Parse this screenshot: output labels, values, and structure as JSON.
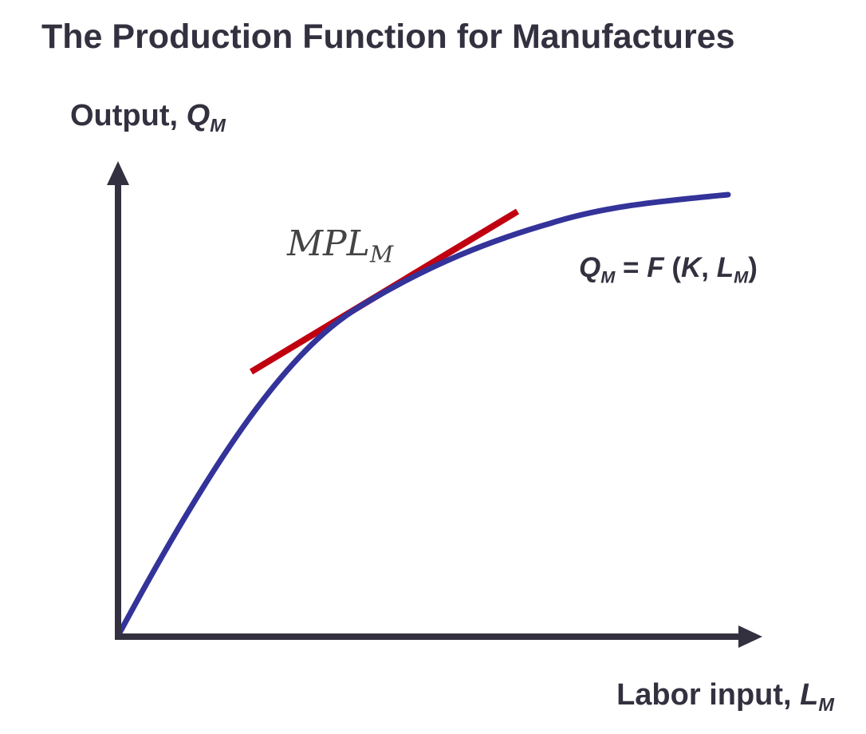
{
  "title": "The Production Function for Manufactures",
  "y_axis": {
    "label_main": "Output, ",
    "label_var": "Q",
    "label_sub": "M"
  },
  "x_axis": {
    "label_main": "Labor input, ",
    "label_var": "L",
    "label_sub": "M"
  },
  "curve_label": {
    "q": "Q",
    "q_sub": "M",
    "eq": " = ",
    "f": "F",
    "open": " (",
    "k": "K",
    "comma": ", ",
    "l": "L",
    "l_sub": "M",
    "close": ")"
  },
  "tangent_label": {
    "main": "MPL",
    "sub": "M"
  },
  "colors": {
    "axis": "#33313f",
    "curve": "#33339a",
    "tangent": "#c00010",
    "text": "#33313f"
  }
}
